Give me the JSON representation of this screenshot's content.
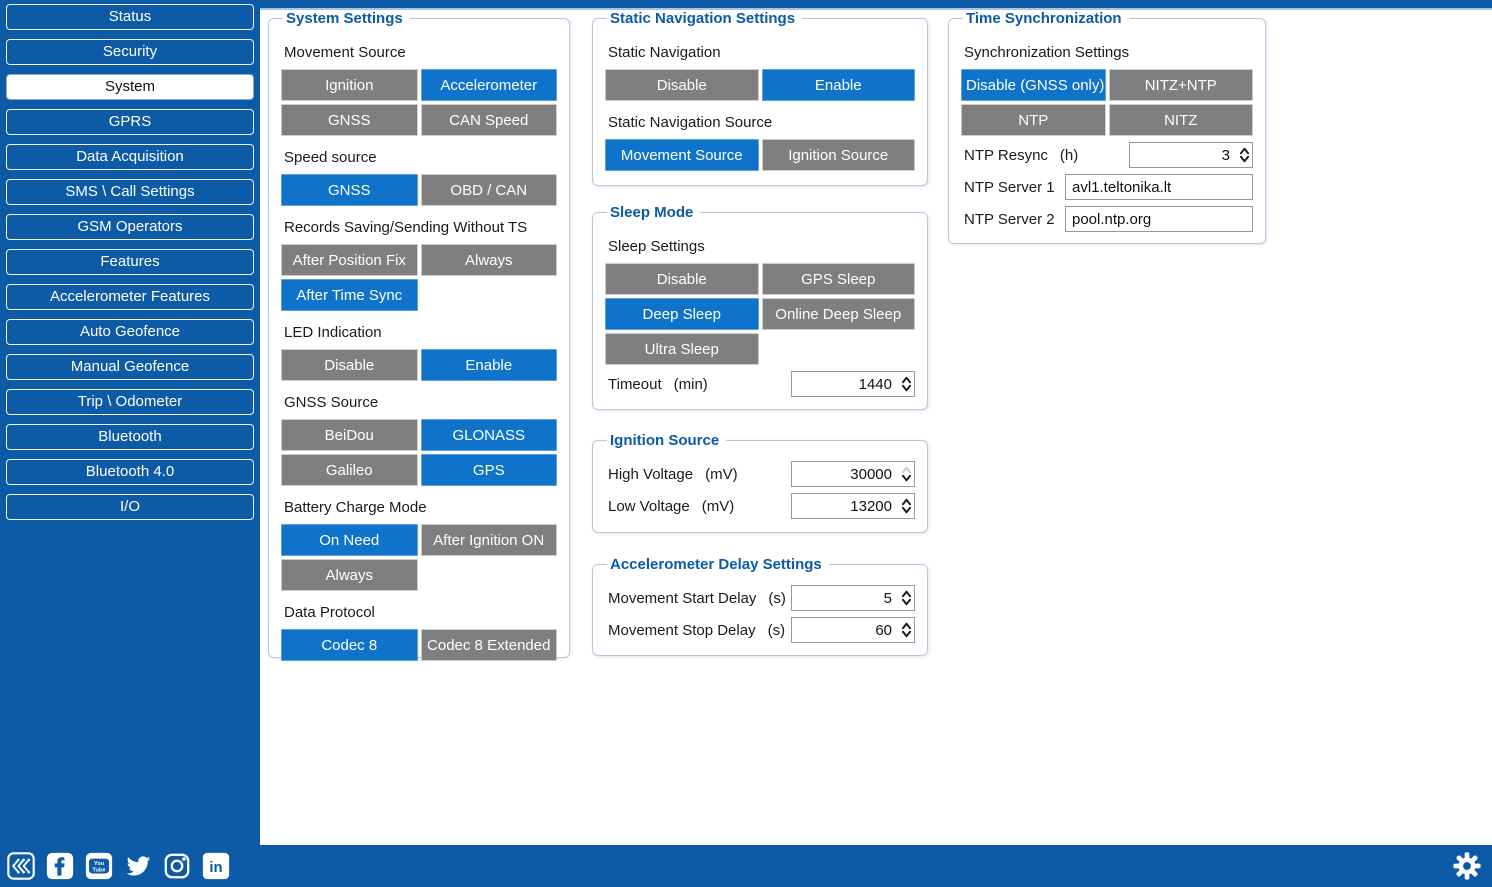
{
  "colors": {
    "sidebar_blue": "#0d5aa6",
    "accent_blue": "#0f74c9",
    "button_gray": "#7f7f7f",
    "legend_blue": "#0c5aa8"
  },
  "sidebar": {
    "items": [
      {
        "label": "Status",
        "selected": false
      },
      {
        "label": "Security",
        "selected": false
      },
      {
        "label": "System",
        "selected": true
      },
      {
        "label": "GPRS",
        "selected": false
      },
      {
        "label": "Data Acquisition",
        "selected": false
      },
      {
        "label": "SMS \\ Call Settings",
        "selected": false
      },
      {
        "label": "GSM Operators",
        "selected": false
      },
      {
        "label": "Features",
        "selected": false
      },
      {
        "label": "Accelerometer Features",
        "selected": false
      },
      {
        "label": "Auto Geofence",
        "selected": false
      },
      {
        "label": "Manual Geofence",
        "selected": false
      },
      {
        "label": "Trip \\ Odometer",
        "selected": false
      },
      {
        "label": "Bluetooth",
        "selected": false
      },
      {
        "label": "Bluetooth 4.0",
        "selected": false
      },
      {
        "label": "I/O",
        "selected": false
      }
    ]
  },
  "panels": [
    {
      "id": "system-settings",
      "title": "System Settings",
      "rows": [
        {
          "type": "label",
          "text": "Movement Source"
        },
        {
          "type": "buttons",
          "buttons": [
            {
              "label": "Ignition",
              "selected": false
            },
            {
              "label": "Accelerometer",
              "selected": true
            },
            {
              "label": "GNSS",
              "selected": false
            },
            {
              "label": "CAN Speed",
              "selected": false
            }
          ]
        },
        {
          "type": "label",
          "text": "Speed source"
        },
        {
          "type": "buttons",
          "buttons": [
            {
              "label": "GNSS",
              "selected": true
            },
            {
              "label": "OBD / CAN",
              "selected": false
            }
          ]
        },
        {
          "type": "label",
          "text": "Records Saving/Sending Without TS"
        },
        {
          "type": "buttons",
          "buttons": [
            {
              "label": "After Position Fix",
              "selected": false
            },
            {
              "label": "Always",
              "selected": false
            },
            {
              "label": "After Time Sync",
              "selected": true
            }
          ]
        },
        {
          "type": "label",
          "text": "LED Indication"
        },
        {
          "type": "buttons",
          "buttons": [
            {
              "label": "Disable",
              "selected": false
            },
            {
              "label": "Enable",
              "selected": true
            }
          ]
        },
        {
          "type": "label",
          "text": "GNSS Source"
        },
        {
          "type": "buttons",
          "buttons": [
            {
              "label": "BeiDou",
              "selected": false
            },
            {
              "label": "GLONASS",
              "selected": true
            },
            {
              "label": "Galileo",
              "selected": false
            },
            {
              "label": "GPS",
              "selected": true
            }
          ]
        },
        {
          "type": "label",
          "text": "Battery Charge Mode"
        },
        {
          "type": "buttons",
          "buttons": [
            {
              "label": "On Need",
              "selected": true
            },
            {
              "label": "After Ignition ON",
              "selected": false
            },
            {
              "label": "Always",
              "selected": false
            }
          ]
        },
        {
          "type": "label",
          "text": "Data Protocol"
        },
        {
          "type": "buttons",
          "buttons": [
            {
              "label": "Codec 8",
              "selected": true
            },
            {
              "label": "Codec 8 Extended",
              "selected": false
            }
          ]
        }
      ]
    },
    {
      "id": "static-navigation",
      "title": "Static Navigation Settings",
      "rows": [
        {
          "type": "label",
          "text": "Static Navigation"
        },
        {
          "type": "buttons",
          "buttons": [
            {
              "label": "Disable",
              "selected": false
            },
            {
              "label": "Enable",
              "selected": true
            }
          ]
        },
        {
          "type": "label",
          "text": "Static Navigation Source"
        },
        {
          "type": "buttons",
          "buttons": [
            {
              "label": "Movement Source",
              "selected": true
            },
            {
              "label": "Ignition Source",
              "selected": false
            }
          ]
        }
      ]
    },
    {
      "id": "sleep-mode",
      "title": "Sleep Mode",
      "rows": [
        {
          "type": "label",
          "text": "Sleep Settings"
        },
        {
          "type": "buttons",
          "buttons": [
            {
              "label": "Disable",
              "selected": false
            },
            {
              "label": "GPS Sleep",
              "selected": false
            },
            {
              "label": "Deep Sleep",
              "selected": true
            },
            {
              "label": "Online Deep Sleep",
              "selected": false
            },
            {
              "label": "Ultra Sleep",
              "selected": false
            }
          ]
        },
        {
          "type": "spin",
          "label": "Timeout",
          "unit": "(min)",
          "value": "1440",
          "up_disabled": false
        }
      ]
    },
    {
      "id": "ignition-source",
      "title": "Ignition Source",
      "rows": [
        {
          "type": "spin",
          "label": "High Voltage",
          "unit": "(mV)",
          "value": "30000",
          "up_disabled": true
        },
        {
          "type": "spin",
          "label": "Low Voltage",
          "unit": "(mV)",
          "value": "13200",
          "up_disabled": false
        }
      ]
    },
    {
      "id": "accelerometer-delay",
      "title": "Accelerometer Delay Settings",
      "rows": [
        {
          "type": "spin",
          "label": "Movement Start Delay",
          "unit": "(s)",
          "value": "5",
          "up_disabled": false
        },
        {
          "type": "spin",
          "label": "Movement Stop Delay",
          "unit": "(s)",
          "value": "60",
          "up_disabled": false
        }
      ]
    },
    {
      "id": "time-sync",
      "title": "Time Synchronization",
      "rows": [
        {
          "type": "label",
          "text": "Synchronization Settings"
        },
        {
          "type": "buttons",
          "buttons": [
            {
              "label": "Disable (GNSS only)",
              "selected": true
            },
            {
              "label": "NITZ+NTP",
              "selected": false
            },
            {
              "label": "NTP",
              "selected": false
            },
            {
              "label": "NITZ",
              "selected": false
            }
          ]
        },
        {
          "type": "spin",
          "label": "NTP Resync",
          "unit": "(h)",
          "value": "3",
          "up_disabled": false
        },
        {
          "type": "text",
          "label": "NTP Server 1",
          "value": "avl1.teltonika.lt"
        },
        {
          "type": "text",
          "label": "NTP Server 2",
          "value": "pool.ntp.org"
        }
      ]
    }
  ],
  "footer": {
    "icons": [
      {
        "name": "collapse-panel"
      },
      {
        "name": "facebook"
      },
      {
        "name": "youtube"
      },
      {
        "name": "twitter"
      },
      {
        "name": "instagram"
      },
      {
        "name": "linkedin"
      }
    ],
    "settings_icon": {
      "name": "settings-gear"
    }
  }
}
